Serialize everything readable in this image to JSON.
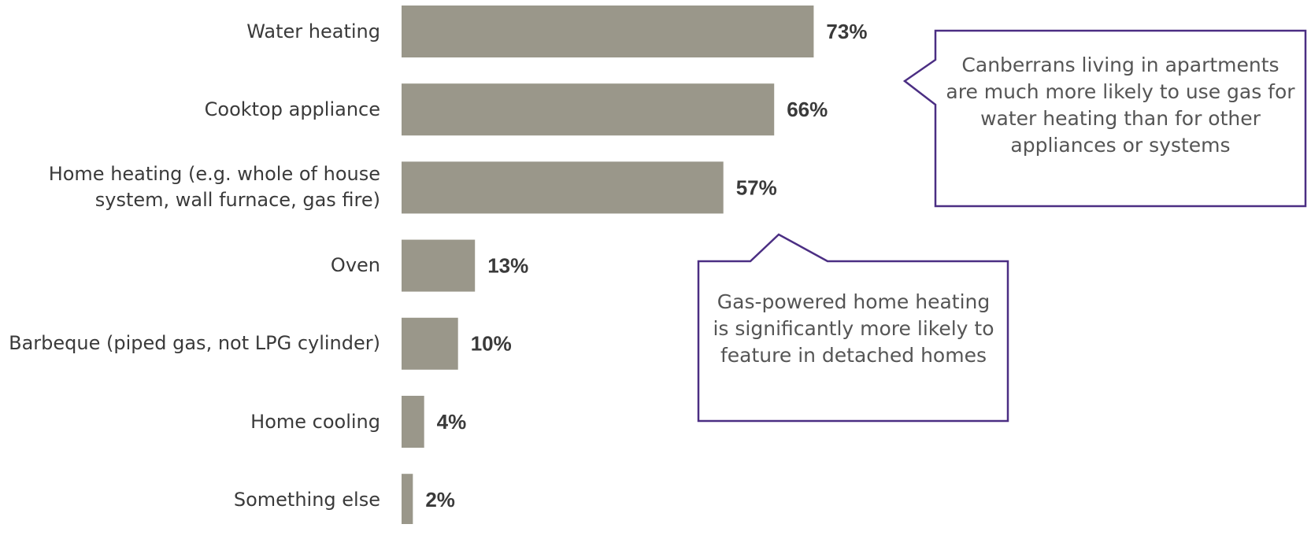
{
  "chart_data": {
    "type": "bar",
    "orientation": "horizontal",
    "categories": [
      "Water heating",
      "Cooktop appliance",
      "Home heating (e.g. whole of house system, wall furnace, gas fire)",
      "Oven",
      "Barbeque (piped gas, not LPG cylinder)",
      "Home cooling",
      "Something else"
    ],
    "values": [
      73,
      66,
      57,
      13,
      10,
      4,
      2
    ],
    "value_labels": [
      "73%",
      "66%",
      "57%",
      "13%",
      "10%",
      "4%",
      "2%"
    ],
    "color": "#9a978a",
    "annotations": [
      "Canberrans living in apartments are much more likely to use gas for water heating than for other appliances or systems",
      "Gas-powered home heating is significantly more likely to feature in detached homes"
    ]
  }
}
